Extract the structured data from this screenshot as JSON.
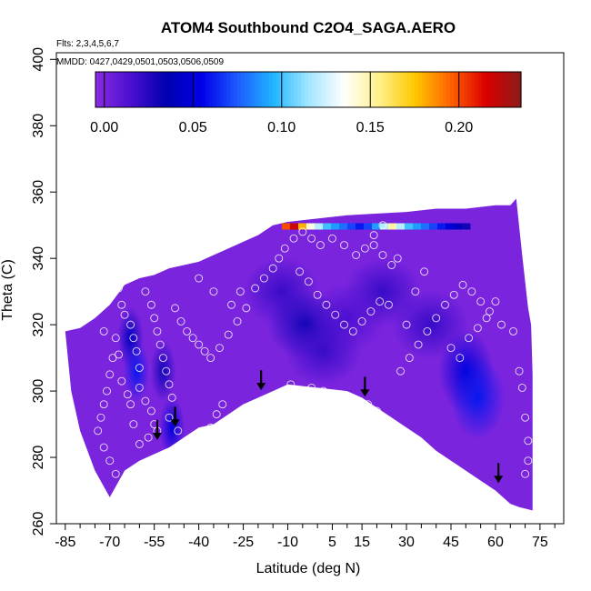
{
  "chart_data": {
    "type": "heatmap",
    "title": "ATOM4 Southbound C2O4_SAGA.AERO",
    "flights_label": "Flts: 2,3,4,5,6,7",
    "dates_label": "MMDD: 0427,0429,0501,0503,0506,0509",
    "xlabel": "Latitude (deg N)",
    "ylabel": "Theta (C)",
    "xlim": [
      -88,
      83
    ],
    "ylim": [
      260,
      402
    ],
    "x_ticks": [
      -85,
      -70,
      -55,
      -40,
      -25,
      -10,
      5,
      15,
      30,
      45,
      60,
      75
    ],
    "x_tick_labels": [
      "-85",
      "-70",
      "-55",
      "-40",
      "-25",
      "-10",
      "5",
      "15",
      "30",
      "45",
      "60",
      "75"
    ],
    "x_minor_ticks": [
      -80,
      -75,
      -65,
      -60,
      -50,
      -45,
      -35,
      -30,
      -20,
      -15,
      -5,
      0,
      10,
      20,
      25,
      35,
      40,
      50,
      55,
      65,
      70,
      80
    ],
    "y_ticks": [
      260,
      280,
      300,
      320,
      340,
      360,
      380,
      400
    ],
    "y_tick_labels": [
      "260",
      "280",
      "300",
      "320",
      "340",
      "360",
      "380",
      "400"
    ],
    "colorbar": {
      "range": [
        -0.005,
        0.235
      ],
      "ticks": [
        0.0,
        0.05,
        0.1,
        0.15,
        0.2
      ],
      "tick_labels": [
        "0.00",
        "0.05",
        "0.10",
        "0.15",
        "0.20"
      ],
      "colors": [
        "#8a2be2",
        "#4b0fd0",
        "#0000b0",
        "#0000e8",
        "#1e5aff",
        "#1eb4ff",
        "#a0e6ff",
        "#ffffff",
        "#fff08c",
        "#ffc800",
        "#ff6400",
        "#dc0000",
        "#8b1a1a"
      ]
    },
    "field_base_value": 0.0,
    "coverage_top": [
      [
        -85,
        318
      ],
      [
        -80,
        319
      ],
      [
        -75,
        322
      ],
      [
        -70,
        326
      ],
      [
        -65,
        332
      ],
      [
        -60,
        334
      ],
      [
        -55,
        335
      ],
      [
        -50,
        337
      ],
      [
        -45,
        338
      ],
      [
        -40,
        339
      ],
      [
        -35,
        341
      ],
      [
        -30,
        343
      ],
      [
        -25,
        345
      ],
      [
        -20,
        347
      ],
      [
        -15,
        350
      ],
      [
        -10,
        351
      ],
      [
        0,
        352
      ],
      [
        10,
        353
      ],
      [
        20,
        353.5
      ],
      [
        30,
        354
      ],
      [
        40,
        355
      ],
      [
        50,
        355
      ],
      [
        60,
        356
      ],
      [
        65,
        356
      ],
      [
        67,
        358
      ],
      [
        69,
        341
      ],
      [
        71,
        325
      ],
      [
        72,
        320
      ],
      [
        72.5,
        305
      ]
    ],
    "coverage_bottom": [
      [
        -85,
        318
      ],
      [
        -83,
        300
      ],
      [
        -80,
        288
      ],
      [
        -75,
        276
      ],
      [
        -70,
        268
      ],
      [
        -65,
        276
      ],
      [
        -60,
        279
      ],
      [
        -55,
        281
      ],
      [
        -50,
        283
      ],
      [
        -45,
        286
      ],
      [
        -40,
        289
      ],
      [
        -35,
        290
      ],
      [
        -30,
        293
      ],
      [
        -25,
        296
      ],
      [
        -20,
        298
      ],
      [
        -15,
        300
      ],
      [
        -10,
        302
      ],
      [
        -5,
        301.5
      ],
      [
        0,
        301
      ],
      [
        5,
        300.5
      ],
      [
        10,
        300
      ],
      [
        15,
        298
      ],
      [
        20,
        295
      ],
      [
        25,
        292
      ],
      [
        30,
        289
      ],
      [
        35,
        286
      ],
      [
        40,
        282
      ],
      [
        45,
        279
      ],
      [
        50,
        276
      ],
      [
        55,
        273
      ],
      [
        60,
        270
      ],
      [
        65,
        266
      ],
      [
        68,
        265
      ],
      [
        72.5,
        264
      ]
    ],
    "high_patches": [
      {
        "lat": -63,
        "theta": 316,
        "value": 0.04
      },
      {
        "lat": -61,
        "theta": 306,
        "value": 0.06
      },
      {
        "lat": -49,
        "theta": 289,
        "value": 0.05
      },
      {
        "lat": -52,
        "theta": 306,
        "value": 0.03
      },
      {
        "lat": 50,
        "theta": 306,
        "value": 0.05
      },
      {
        "lat": 54,
        "theta": 298,
        "value": 0.06
      },
      {
        "lat": 38,
        "theta": 320,
        "value": 0.02
      },
      {
        "lat": -12,
        "theta": 330,
        "value": 0.02
      },
      {
        "lat": 22,
        "theta": 330,
        "value": 0.02
      },
      {
        "lat": -4,
        "theta": 320,
        "value": 0.03
      },
      {
        "lat": 10,
        "theta": 322,
        "value": 0.015
      },
      {
        "lat": 2,
        "theta": 312,
        "value": 0.02
      }
    ],
    "top_stripe": {
      "theta": 349.5,
      "lat_start": -12,
      "values": [
        0.2,
        0.22,
        0.18,
        0.14,
        0.12,
        0.1,
        0.09,
        0.08,
        0.07,
        0.06,
        0.07,
        0.09,
        0.12,
        0.15,
        0.12,
        0.1,
        0.09,
        0.08,
        0.07,
        0.06,
        0.05,
        0.04,
        0.03
      ]
    },
    "markers": [
      [
        -72,
        318
      ],
      [
        -67,
        331
      ],
      [
        -66,
        326
      ],
      [
        -65,
        323
      ],
      [
        -63,
        320
      ],
      [
        -62,
        316
      ],
      [
        -61,
        312
      ],
      [
        -60,
        307
      ],
      [
        -60,
        301
      ],
      [
        -58,
        297
      ],
      [
        -56,
        294
      ],
      [
        -55,
        290
      ],
      [
        -54,
        288
      ],
      [
        -57,
        286
      ],
      [
        -60,
        284
      ],
      [
        -62,
        290
      ],
      [
        -63,
        296
      ],
      [
        -64,
        299
      ],
      [
        -66,
        303
      ],
      [
        -67,
        311
      ],
      [
        -68,
        316
      ],
      [
        -69,
        310
      ],
      [
        -70,
        305
      ],
      [
        -71,
        300
      ],
      [
        -72,
        296
      ],
      [
        -73,
        292
      ],
      [
        -74,
        288
      ],
      [
        -72,
        283
      ],
      [
        -70,
        279
      ],
      [
        -68,
        275
      ],
      [
        -66,
        271
      ],
      [
        -64,
        268
      ],
      [
        -58,
        330
      ],
      [
        -56,
        326
      ],
      [
        -55,
        322
      ],
      [
        -54,
        318
      ],
      [
        -53,
        314
      ],
      [
        -52,
        310
      ],
      [
        -51,
        306
      ],
      [
        -50,
        302
      ],
      [
        -49,
        298
      ],
      [
        -50,
        292
      ],
      [
        -47,
        288
      ],
      [
        -45,
        284
      ],
      [
        -43,
        282
      ],
      [
        -41,
        283
      ],
      [
        -38,
        287
      ],
      [
        -36,
        289
      ],
      [
        -34,
        293
      ],
      [
        -32,
        296
      ],
      [
        -48,
        325
      ],
      [
        -46,
        321
      ],
      [
        -44,
        318
      ],
      [
        -42,
        316
      ],
      [
        -40,
        314
      ],
      [
        -38,
        312
      ],
      [
        -36,
        310
      ],
      [
        -33,
        313
      ],
      [
        -30,
        317
      ],
      [
        -27,
        321
      ],
      [
        -24,
        325
      ],
      [
        -21,
        331
      ],
      [
        -18,
        334
      ],
      [
        -15,
        337
      ],
      [
        -13,
        340
      ],
      [
        -11,
        343
      ],
      [
        -8,
        346
      ],
      [
        -5,
        348
      ],
      [
        -2,
        346
      ],
      [
        1,
        344
      ],
      [
        5,
        346
      ],
      [
        9,
        344
      ],
      [
        13,
        341
      ],
      [
        16,
        343
      ],
      [
        19,
        344
      ],
      [
        22,
        341
      ],
      [
        25,
        338
      ],
      [
        -6,
        336
      ],
      [
        -3,
        333
      ],
      [
        0,
        329
      ],
      [
        3,
        326
      ],
      [
        6,
        323
      ],
      [
        9,
        320
      ],
      [
        12,
        318
      ],
      [
        15,
        321
      ],
      [
        18,
        324
      ],
      [
        21,
        327
      ],
      [
        24,
        326
      ],
      [
        -9,
        302
      ],
      [
        -2,
        301
      ],
      [
        2,
        300
      ],
      [
        6,
        299
      ],
      [
        10,
        298
      ],
      [
        14,
        297
      ],
      [
        17,
        296
      ],
      [
        20,
        294
      ],
      [
        24,
        291
      ],
      [
        27,
        289
      ],
      [
        31,
        286
      ],
      [
        35,
        283
      ],
      [
        39,
        280
      ],
      [
        43,
        277
      ],
      [
        28,
        306
      ],
      [
        31,
        310
      ],
      [
        34,
        314
      ],
      [
        37,
        318
      ],
      [
        40,
        322
      ],
      [
        43,
        326
      ],
      [
        46,
        329
      ],
      [
        49,
        332
      ],
      [
        52,
        330
      ],
      [
        55,
        327
      ],
      [
        58,
        324
      ],
      [
        60,
        327
      ],
      [
        62,
        320
      ],
      [
        45,
        313
      ],
      [
        48,
        310
      ],
      [
        51,
        316
      ],
      [
        54,
        319
      ],
      [
        57,
        322
      ],
      [
        66,
        318
      ],
      [
        68,
        306
      ],
      [
        69,
        301
      ],
      [
        70,
        292
      ],
      [
        71,
        285
      ],
      [
        71,
        279
      ],
      [
        70,
        275
      ],
      [
        30,
        320
      ],
      [
        33,
        330
      ],
      [
        36,
        336
      ],
      [
        27,
        340
      ],
      [
        19,
        347
      ],
      [
        22,
        350
      ],
      [
        -29,
        326
      ],
      [
        -26,
        330
      ],
      [
        -35,
        330
      ],
      [
        -40,
        334
      ]
    ],
    "arrows": [
      [
        -54,
        288
      ],
      [
        -48,
        292
      ],
      [
        -19,
        303
      ],
      [
        16,
        301
      ],
      [
        61,
        275
      ]
    ],
    "axis_top_lat_label_pos": "top-left"
  }
}
